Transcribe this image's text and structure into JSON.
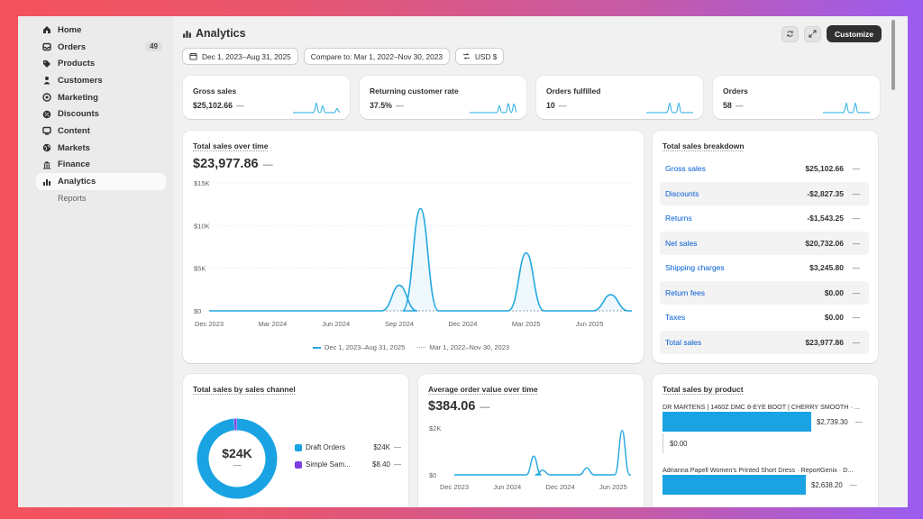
{
  "sidebar": {
    "items": [
      {
        "label": "Home",
        "icon": "home-icon"
      },
      {
        "label": "Orders",
        "icon": "inbox-icon",
        "badge": "49"
      },
      {
        "label": "Products",
        "icon": "tag-icon"
      },
      {
        "label": "Customers",
        "icon": "person-icon"
      },
      {
        "label": "Marketing",
        "icon": "target-icon"
      },
      {
        "label": "Discounts",
        "icon": "discount-icon"
      },
      {
        "label": "Content",
        "icon": "content-icon"
      },
      {
        "label": "Markets",
        "icon": "globe-icon"
      },
      {
        "label": "Finance",
        "icon": "bank-icon"
      },
      {
        "label": "Analytics",
        "icon": "bar-chart-icon"
      }
    ],
    "sub_items": [
      "Reports"
    ]
  },
  "header": {
    "title": "Analytics",
    "customize_label": "Customize"
  },
  "filters": {
    "date_range": "Dec 1, 2023–Aug 31, 2025",
    "compare": "Compare to: Mar 1, 2022–Nov 30, 2023",
    "currency": "USD $"
  },
  "metrics": [
    {
      "label": "Gross sales",
      "value": "$25,102.66",
      "dash": "—"
    },
    {
      "label": "Returning customer rate",
      "value": "37.5%",
      "dash": "—"
    },
    {
      "label": "Orders fulfilled",
      "value": "10",
      "dash": "—"
    },
    {
      "label": "Orders",
      "value": "58",
      "dash": "—"
    }
  ],
  "sales_over_time": {
    "title": "Total sales over time",
    "value": "$23,977.86",
    "dash": "—",
    "legend_current": "Dec 1, 2023–Aug 31, 2025",
    "legend_compare": "Mar 1, 2022–Nov 30, 2023"
  },
  "breakdown": {
    "title": "Total sales breakdown",
    "rows": [
      {
        "label": "Gross sales",
        "value": "$25,102.66",
        "dash": "—"
      },
      {
        "label": "Discounts",
        "value": "-$2,827.35",
        "dash": "—"
      },
      {
        "label": "Returns",
        "value": "-$1,543.25",
        "dash": "—"
      },
      {
        "label": "Net sales",
        "value": "$20,732.06",
        "dash": "—"
      },
      {
        "label": "Shipping charges",
        "value": "$3,245.80",
        "dash": "—"
      },
      {
        "label": "Return fees",
        "value": "$0.00",
        "dash": "—"
      },
      {
        "label": "Taxes",
        "value": "$0.00",
        "dash": "—"
      },
      {
        "label": "Total sales",
        "value": "$23,977.86",
        "dash": "—"
      }
    ]
  },
  "sales_by_channel": {
    "title": "Total sales by sales channel",
    "center_value": "$24K",
    "center_dash": "—",
    "channels": [
      {
        "name": "Draft Orders",
        "value": "$24K",
        "dash": "—",
        "color": "#19a3e3"
      },
      {
        "name": "Simple Sam...",
        "value": "$8.40",
        "dash": "—",
        "color": "#7b3fe4"
      }
    ]
  },
  "aov": {
    "title": "Average order value over time",
    "value": "$384.06",
    "dash": "—"
  },
  "by_product": {
    "title": "Total sales by product",
    "products": [
      {
        "name": "DR MARTENS | 1460Z DMC 8-EYE BOOT | CHERRY SMOOTH · ...",
        "value": "$2,739.30",
        "compare": "$0.00",
        "dash": "—"
      },
      {
        "name": "Adrianna Papell Women's Printed Short Dress · ReportGenix · D...",
        "value": "$2,638.20",
        "dash": "—"
      }
    ]
  },
  "chart_data": [
    {
      "type": "line",
      "title": "Total sales over time",
      "x_ticks": [
        "Dec 2023",
        "Mar 2024",
        "Jun 2024",
        "Sep 2024",
        "Dec 2024",
        "Mar 2025",
        "Jun 2025"
      ],
      "y_ticks": [
        "$15K",
        "$10K",
        "$5K",
        "$0"
      ],
      "ylim": [
        0,
        15000
      ],
      "x": [
        "2023-12",
        "2024-01",
        "2024-02",
        "2024-03",
        "2024-04",
        "2024-05",
        "2024-06",
        "2024-07",
        "2024-08",
        "2024-09",
        "2024-10",
        "2024-11",
        "2024-12",
        "2025-01",
        "2025-02",
        "2025-03",
        "2025-04",
        "2025-05",
        "2025-06",
        "2025-07",
        "2025-08"
      ],
      "series": [
        {
          "name": "Dec 1, 2023–Aug 31, 2025",
          "values": [
            0,
            0,
            0,
            0,
            0,
            0,
            0,
            0,
            0,
            3000,
            12000,
            0,
            0,
            0,
            0,
            6800,
            0,
            0,
            0,
            1900,
            0
          ],
          "color": "#23a8e0"
        },
        {
          "name": "Mar 1, 2022–Nov 30, 2023",
          "values": [
            0,
            0,
            0,
            0,
            0,
            0,
            0,
            0,
            0,
            0,
            0,
            0,
            0,
            0,
            0,
            0,
            0,
            0,
            0,
            0,
            0
          ],
          "color": "#9aa5ad"
        }
      ]
    },
    {
      "type": "line",
      "title": "Average order value over time",
      "x_ticks": [
        "Dec 2023",
        "Jun 2024",
        "Dec 2024",
        "Jun 2025"
      ],
      "y_ticks": [
        "$2K",
        "$0"
      ],
      "ylim": [
        0,
        2000
      ],
      "x": [
        "2023-12",
        "2024-01",
        "2024-02",
        "2024-03",
        "2024-04",
        "2024-05",
        "2024-06",
        "2024-07",
        "2024-08",
        "2024-09",
        "2024-10",
        "2024-11",
        "2024-12",
        "2025-01",
        "2025-02",
        "2025-03",
        "2025-04",
        "2025-05",
        "2025-06",
        "2025-07",
        "2025-08"
      ],
      "series": [
        {
          "name": "Dec 1, 2023–Aug 31, 2025",
          "values": [
            0,
            0,
            0,
            0,
            0,
            0,
            0,
            0,
            0,
            800,
            200,
            0,
            0,
            0,
            0,
            300,
            0,
            0,
            0,
            1900,
            0
          ],
          "color": "#23a8e0"
        }
      ]
    },
    {
      "type": "pie",
      "title": "Total sales by sales channel",
      "categories": [
        "Draft Orders",
        "Simple Sam..."
      ],
      "values": [
        23969.46,
        8.4
      ]
    },
    {
      "type": "bar",
      "title": "Total sales by product",
      "categories": [
        "DR MARTENS | 1460Z DMC 8-EYE BOOT | CHERRY SMOOTH",
        "Adrianna Papell Women's Printed Short Dress"
      ],
      "values": [
        2739.3,
        2638.2
      ]
    }
  ]
}
